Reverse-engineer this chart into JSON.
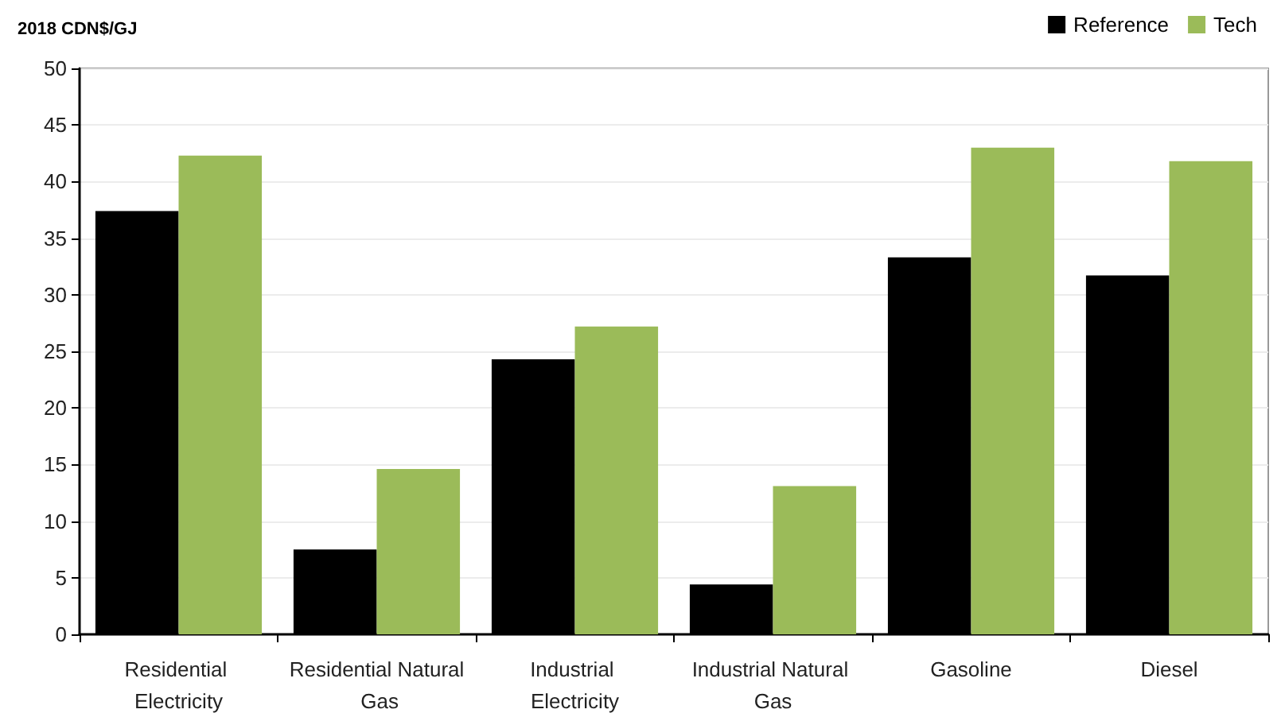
{
  "chart_data": {
    "type": "bar",
    "ylabel": "2018 CDN$/GJ",
    "categories": [
      "Residential Electricity",
      "Residential Natural Gas",
      "Industrial Electricity",
      "Industrial Natural Gas",
      "Gasoline",
      "Diesel"
    ],
    "series": [
      {
        "name": "Reference",
        "color": "#000000",
        "values": [
          37.4,
          7.5,
          24.3,
          4.4,
          33.3,
          31.7
        ]
      },
      {
        "name": "Tech",
        "color": "#9bbb59",
        "values": [
          42.3,
          14.6,
          27.2,
          13.1,
          43.0,
          41.8
        ]
      }
    ],
    "ylim": [
      0,
      50
    ],
    "yticks": [
      0,
      5,
      10,
      15,
      20,
      25,
      30,
      35,
      40,
      45,
      50
    ],
    "grid": "y",
    "legend": "top right"
  }
}
